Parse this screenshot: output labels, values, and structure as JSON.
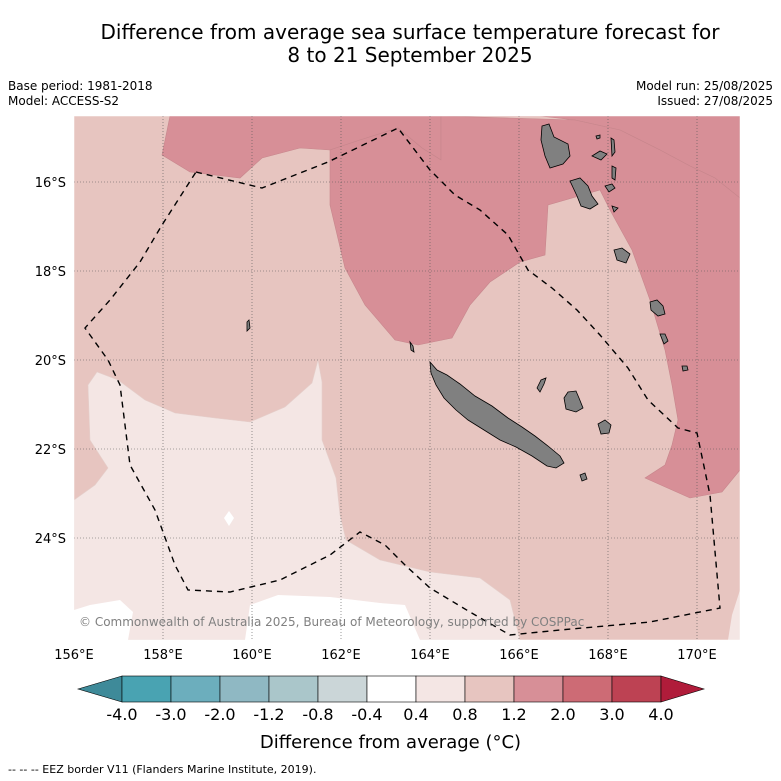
{
  "title": {
    "line1": "Difference from average sea surface temperature forecast for",
    "line2": "8 to 21 September 2025"
  },
  "meta": {
    "base_period": "Base period: 1981-2018",
    "model": "Model: ACCESS-S2",
    "model_run": "Model run: 25/08/2025",
    "issued": "Issued: 27/08/2025"
  },
  "map": {
    "copyright": "© Commonwealth of Australia 2025, Bureau of Meteorology, supported by COSPPac",
    "lat_labels": [
      "16°S",
      "18°S",
      "20°S",
      "22°S",
      "24°S"
    ],
    "lon_labels": [
      "156°E",
      "158°E",
      "160°E",
      "162°E",
      "164°E",
      "166°E",
      "168°E",
      "170°E"
    ],
    "colors": {
      "land": "#808080",
      "band_0_4_0_8": "#f4e6e4",
      "band_0_8_1_2": "#e7c5c0",
      "band_1_2_2_0": "#d78f97",
      "eez_line": "#000000"
    }
  },
  "colorbar": {
    "ticks": [
      "-4.0",
      "-3.0",
      "-2.0",
      "-1.2",
      "-0.8",
      "-0.4",
      "0.4",
      "0.8",
      "1.2",
      "2.0",
      "3.0",
      "4.0"
    ],
    "colors": [
      "#3e8a99",
      "#49a3b2",
      "#6caebd",
      "#8fb8c3",
      "#aac6ca",
      "#cbd6d8",
      "#ffffff",
      "#f4e6e4",
      "#e7c5c0",
      "#d78f97",
      "#cd6b75",
      "#bd4253",
      "#b01c3a"
    ],
    "unit_label": "Difference from average (°C)"
  },
  "legend_note": "--  --  -- EEZ border V11 (Flanders Marine Institute, 2019)."
}
